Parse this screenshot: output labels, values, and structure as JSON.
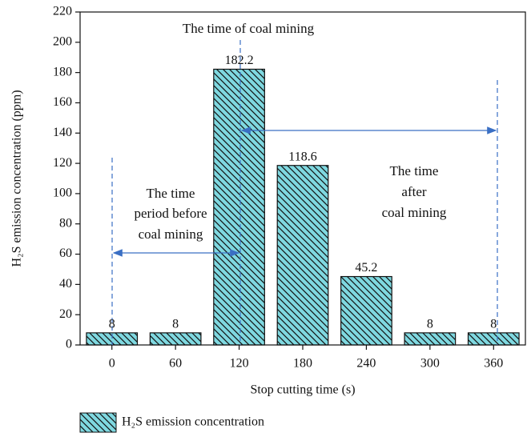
{
  "chart_data": {
    "type": "bar",
    "ylabel": "H₂S emission concentration (ppm)",
    "xlabel": "Stop cutting time (s)",
    "categories": [
      "0",
      "60",
      "120",
      "180",
      "240",
      "300",
      "360"
    ],
    "series": [
      {
        "name": "H₂S emission concentration",
        "color": "#7fd8e0",
        "values": [
          8,
          8,
          182.2,
          118.6,
          45.2,
          8,
          8
        ]
      }
    ],
    "ylim": [
      0,
      220
    ],
    "yticks": [
      0,
      20,
      40,
      60,
      80,
      100,
      120,
      140,
      160,
      180,
      200,
      220
    ],
    "annotations": [
      [
        "The time of coal mining"
      ],
      [
        "The time",
        "period before",
        "coal mining"
      ],
      [
        "The time",
        "after",
        "coal mining"
      ]
    ]
  }
}
